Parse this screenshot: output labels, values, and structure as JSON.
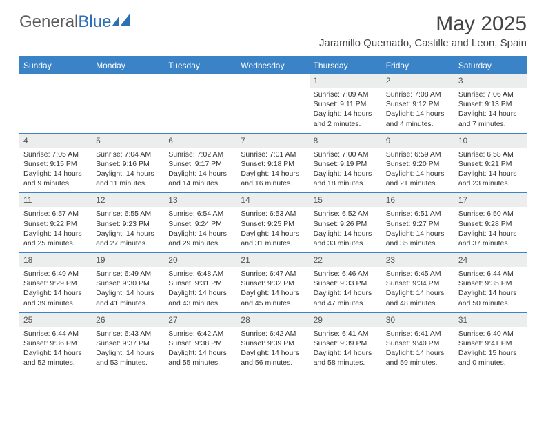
{
  "logo": {
    "text1": "General",
    "text2": "Blue"
  },
  "title": "May 2025",
  "subtitle": "Jaramillo Quemado, Castille and Leon, Spain",
  "colors": {
    "header_bg": "#3b83c7",
    "header_text": "#ffffff",
    "date_bg": "#eceded",
    "text": "#333333",
    "logo_gray": "#5a5a5a",
    "logo_blue": "#2d6fb5"
  },
  "dayNames": [
    "Sunday",
    "Monday",
    "Tuesday",
    "Wednesday",
    "Thursday",
    "Friday",
    "Saturday"
  ],
  "weeks": [
    [
      {
        "date": "",
        "lines": []
      },
      {
        "date": "",
        "lines": []
      },
      {
        "date": "",
        "lines": []
      },
      {
        "date": "",
        "lines": []
      },
      {
        "date": "1",
        "lines": [
          "Sunrise: 7:09 AM",
          "Sunset: 9:11 PM",
          "Daylight: 14 hours",
          "and 2 minutes."
        ]
      },
      {
        "date": "2",
        "lines": [
          "Sunrise: 7:08 AM",
          "Sunset: 9:12 PM",
          "Daylight: 14 hours",
          "and 4 minutes."
        ]
      },
      {
        "date": "3",
        "lines": [
          "Sunrise: 7:06 AM",
          "Sunset: 9:13 PM",
          "Daylight: 14 hours",
          "and 7 minutes."
        ]
      }
    ],
    [
      {
        "date": "4",
        "lines": [
          "Sunrise: 7:05 AM",
          "Sunset: 9:15 PM",
          "Daylight: 14 hours",
          "and 9 minutes."
        ]
      },
      {
        "date": "5",
        "lines": [
          "Sunrise: 7:04 AM",
          "Sunset: 9:16 PM",
          "Daylight: 14 hours",
          "and 11 minutes."
        ]
      },
      {
        "date": "6",
        "lines": [
          "Sunrise: 7:02 AM",
          "Sunset: 9:17 PM",
          "Daylight: 14 hours",
          "and 14 minutes."
        ]
      },
      {
        "date": "7",
        "lines": [
          "Sunrise: 7:01 AM",
          "Sunset: 9:18 PM",
          "Daylight: 14 hours",
          "and 16 minutes."
        ]
      },
      {
        "date": "8",
        "lines": [
          "Sunrise: 7:00 AM",
          "Sunset: 9:19 PM",
          "Daylight: 14 hours",
          "and 18 minutes."
        ]
      },
      {
        "date": "9",
        "lines": [
          "Sunrise: 6:59 AM",
          "Sunset: 9:20 PM",
          "Daylight: 14 hours",
          "and 21 minutes."
        ]
      },
      {
        "date": "10",
        "lines": [
          "Sunrise: 6:58 AM",
          "Sunset: 9:21 PM",
          "Daylight: 14 hours",
          "and 23 minutes."
        ]
      }
    ],
    [
      {
        "date": "11",
        "lines": [
          "Sunrise: 6:57 AM",
          "Sunset: 9:22 PM",
          "Daylight: 14 hours",
          "and 25 minutes."
        ]
      },
      {
        "date": "12",
        "lines": [
          "Sunrise: 6:55 AM",
          "Sunset: 9:23 PM",
          "Daylight: 14 hours",
          "and 27 minutes."
        ]
      },
      {
        "date": "13",
        "lines": [
          "Sunrise: 6:54 AM",
          "Sunset: 9:24 PM",
          "Daylight: 14 hours",
          "and 29 minutes."
        ]
      },
      {
        "date": "14",
        "lines": [
          "Sunrise: 6:53 AM",
          "Sunset: 9:25 PM",
          "Daylight: 14 hours",
          "and 31 minutes."
        ]
      },
      {
        "date": "15",
        "lines": [
          "Sunrise: 6:52 AM",
          "Sunset: 9:26 PM",
          "Daylight: 14 hours",
          "and 33 minutes."
        ]
      },
      {
        "date": "16",
        "lines": [
          "Sunrise: 6:51 AM",
          "Sunset: 9:27 PM",
          "Daylight: 14 hours",
          "and 35 minutes."
        ]
      },
      {
        "date": "17",
        "lines": [
          "Sunrise: 6:50 AM",
          "Sunset: 9:28 PM",
          "Daylight: 14 hours",
          "and 37 minutes."
        ]
      }
    ],
    [
      {
        "date": "18",
        "lines": [
          "Sunrise: 6:49 AM",
          "Sunset: 9:29 PM",
          "Daylight: 14 hours",
          "and 39 minutes."
        ]
      },
      {
        "date": "19",
        "lines": [
          "Sunrise: 6:49 AM",
          "Sunset: 9:30 PM",
          "Daylight: 14 hours",
          "and 41 minutes."
        ]
      },
      {
        "date": "20",
        "lines": [
          "Sunrise: 6:48 AM",
          "Sunset: 9:31 PM",
          "Daylight: 14 hours",
          "and 43 minutes."
        ]
      },
      {
        "date": "21",
        "lines": [
          "Sunrise: 6:47 AM",
          "Sunset: 9:32 PM",
          "Daylight: 14 hours",
          "and 45 minutes."
        ]
      },
      {
        "date": "22",
        "lines": [
          "Sunrise: 6:46 AM",
          "Sunset: 9:33 PM",
          "Daylight: 14 hours",
          "and 47 minutes."
        ]
      },
      {
        "date": "23",
        "lines": [
          "Sunrise: 6:45 AM",
          "Sunset: 9:34 PM",
          "Daylight: 14 hours",
          "and 48 minutes."
        ]
      },
      {
        "date": "24",
        "lines": [
          "Sunrise: 6:44 AM",
          "Sunset: 9:35 PM",
          "Daylight: 14 hours",
          "and 50 minutes."
        ]
      }
    ],
    [
      {
        "date": "25",
        "lines": [
          "Sunrise: 6:44 AM",
          "Sunset: 9:36 PM",
          "Daylight: 14 hours",
          "and 52 minutes."
        ]
      },
      {
        "date": "26",
        "lines": [
          "Sunrise: 6:43 AM",
          "Sunset: 9:37 PM",
          "Daylight: 14 hours",
          "and 53 minutes."
        ]
      },
      {
        "date": "27",
        "lines": [
          "Sunrise: 6:42 AM",
          "Sunset: 9:38 PM",
          "Daylight: 14 hours",
          "and 55 minutes."
        ]
      },
      {
        "date": "28",
        "lines": [
          "Sunrise: 6:42 AM",
          "Sunset: 9:39 PM",
          "Daylight: 14 hours",
          "and 56 minutes."
        ]
      },
      {
        "date": "29",
        "lines": [
          "Sunrise: 6:41 AM",
          "Sunset: 9:39 PM",
          "Daylight: 14 hours",
          "and 58 minutes."
        ]
      },
      {
        "date": "30",
        "lines": [
          "Sunrise: 6:41 AM",
          "Sunset: 9:40 PM",
          "Daylight: 14 hours",
          "and 59 minutes."
        ]
      },
      {
        "date": "31",
        "lines": [
          "Sunrise: 6:40 AM",
          "Sunset: 9:41 PM",
          "Daylight: 15 hours",
          "and 0 minutes."
        ]
      }
    ]
  ]
}
